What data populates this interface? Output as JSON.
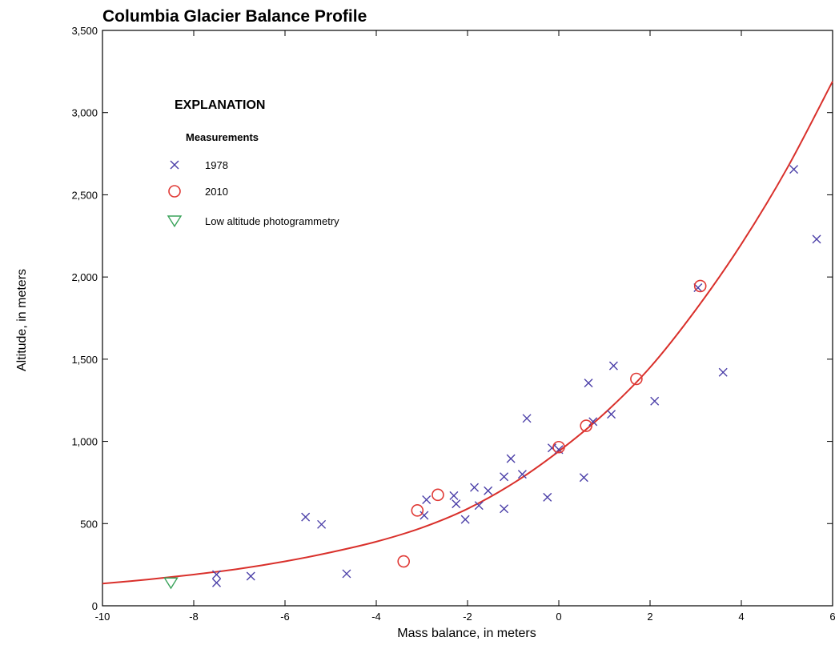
{
  "colors": {
    "x_1978": "#4b3fa8",
    "o_2010": "#e03a36",
    "low_alt": "#3aa35a",
    "fit_curve": "#d9302b",
    "axis": "#000000"
  },
  "chart_data": {
    "type": "scatter",
    "title": "Columbia Glacier Balance Profile",
    "xlabel": "Mass balance, in meters",
    "ylabel": "Altitude, in meters",
    "xlim": [
      -10,
      6
    ],
    "ylim": [
      0,
      3500
    ],
    "x_ticks": [
      -10,
      -8,
      -6,
      -4,
      -2,
      0,
      2,
      4,
      6
    ],
    "x_tick_labels": [
      "-10",
      "-8",
      "-6",
      "-4",
      "-2",
      "0",
      "2",
      "4",
      "6"
    ],
    "y_ticks": [
      0,
      500,
      1000,
      1500,
      2000,
      2500,
      3000,
      3500
    ],
    "y_tick_labels": [
      "0",
      "500",
      "1,000",
      "1,500",
      "2,000",
      "2,500",
      "3,000",
      "3,500"
    ],
    "grid": false,
    "legend": {
      "placement": "top-left",
      "title": "EXPLANATION",
      "subtitle": "Measurements",
      "entries": [
        {
          "label": "1978",
          "marker": "x"
        },
        {
          "label": "2010",
          "marker": "o"
        },
        {
          "label": "Low altitude photogrammetry",
          "marker": "triangle-down"
        }
      ]
    },
    "series": [
      {
        "name": "1978",
        "marker": "x",
        "points": [
          [
            -7.5,
            190
          ],
          [
            -7.5,
            140
          ],
          [
            -6.75,
            180
          ],
          [
            -5.55,
            540
          ],
          [
            -5.2,
            495
          ],
          [
            -4.65,
            195
          ],
          [
            -2.95,
            550
          ],
          [
            -2.9,
            645
          ],
          [
            -2.3,
            670
          ],
          [
            -2.25,
            620
          ],
          [
            -2.05,
            525
          ],
          [
            -1.85,
            720
          ],
          [
            -1.75,
            610
          ],
          [
            -1.55,
            700
          ],
          [
            -1.2,
            785
          ],
          [
            -1.2,
            590
          ],
          [
            -1.05,
            895
          ],
          [
            -0.8,
            800
          ],
          [
            -0.7,
            1140
          ],
          [
            -0.25,
            660
          ],
          [
            -0.15,
            960
          ],
          [
            0.0,
            950
          ],
          [
            0.55,
            780
          ],
          [
            0.65,
            1355
          ],
          [
            0.75,
            1120
          ],
          [
            1.15,
            1165
          ],
          [
            1.2,
            1460
          ],
          [
            2.1,
            1245
          ],
          [
            3.05,
            1935
          ],
          [
            3.6,
            1420
          ],
          [
            5.15,
            2655
          ],
          [
            5.65,
            2230
          ]
        ]
      },
      {
        "name": "2010",
        "marker": "o",
        "points": [
          [
            -3.4,
            270
          ],
          [
            -3.1,
            580
          ],
          [
            -2.65,
            675
          ],
          [
            0.0,
            965
          ],
          [
            0.6,
            1095
          ],
          [
            1.7,
            1380
          ],
          [
            3.1,
            1945
          ]
        ]
      },
      {
        "name": "Low altitude photogrammetry",
        "marker": "triangle-down",
        "points": [
          [
            -8.5,
            140
          ]
        ]
      }
    ],
    "fit_curve": {
      "type": "line",
      "x": [
        -10,
        -9,
        -8,
        -7,
        -6,
        -5,
        -4,
        -3,
        -2,
        -1,
        0,
        1,
        2,
        3,
        4,
        5,
        6
      ],
      "y": [
        135,
        160,
        190,
        225,
        270,
        325,
        390,
        475,
        590,
        745,
        940,
        1170,
        1450,
        1800,
        2200,
        2660,
        3190
      ]
    }
  }
}
